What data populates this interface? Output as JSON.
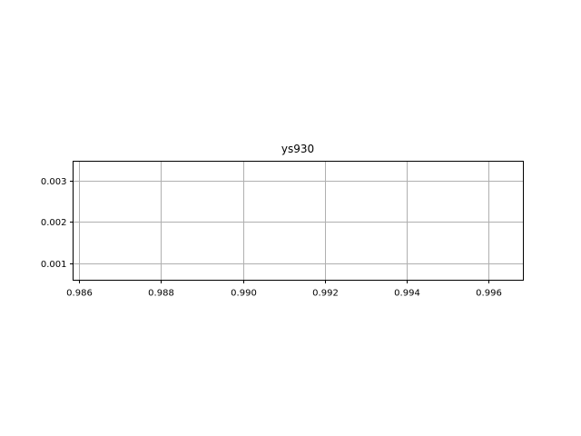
{
  "chart_data": {
    "type": "scatter",
    "title": "ys930",
    "xlabel": "",
    "ylabel": "",
    "xlim": [
      0.98585,
      0.99685
    ],
    "ylim": [
      0.00058,
      0.00348
    ],
    "x_ticks": [
      0.986,
      0.988,
      0.99,
      0.992,
      0.994,
      0.996
    ],
    "x_tick_labels": [
      "0.986",
      "0.988",
      "0.990",
      "0.992",
      "0.994",
      "0.996"
    ],
    "y_ticks": [
      0.001,
      0.002,
      0.003
    ],
    "y_tick_labels": [
      "0.001",
      "0.002",
      "0.003"
    ],
    "grid": true,
    "series": [],
    "colors": {
      "grid": "#b0b0b0",
      "axes": "#000000",
      "background": "#ffffff"
    }
  }
}
